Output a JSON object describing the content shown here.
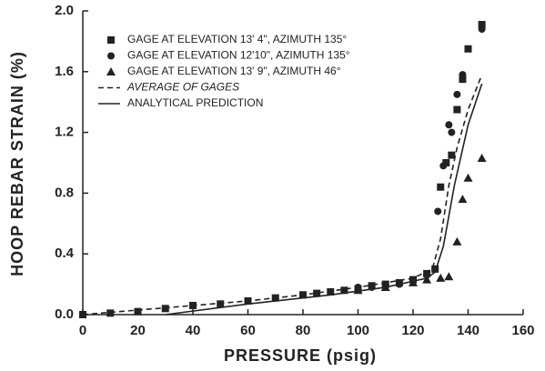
{
  "chart_data": {
    "type": "scatter",
    "x_label": "PRESSURE (psig)",
    "y_label": "HOOP REBAR STRAIN (%)",
    "xlim": [
      0,
      160
    ],
    "ylim": [
      0,
      2.0
    ],
    "xticks": [
      0,
      20,
      40,
      60,
      80,
      100,
      120,
      140,
      160
    ],
    "yticks": [
      {
        "value": 0,
        "label": "0.0"
      },
      0.4,
      0.8,
      1.2,
      1.6,
      {
        "value": 2.0,
        "label": "2.0"
      }
    ],
    "legend": "upper left",
    "series": [
      {
        "name": "GAGE AT ELEVATION 13' 4\", AZIMUTH 135°",
        "kind": "scatter",
        "marker": "square",
        "color": "#222",
        "x": [
          0,
          10,
          20,
          30,
          40,
          50,
          60,
          70,
          80,
          85,
          90,
          95,
          100,
          105,
          110,
          115,
          120,
          125,
          128,
          130,
          132,
          134,
          136,
          138,
          140,
          145
        ],
        "values": [
          0.0,
          0.01,
          0.02,
          0.04,
          0.06,
          0.07,
          0.09,
          0.11,
          0.13,
          0.14,
          0.15,
          0.16,
          0.17,
          0.19,
          0.2,
          0.21,
          0.23,
          0.27,
          0.3,
          0.84,
          1.0,
          1.05,
          1.35,
          1.55,
          1.75,
          1.91
        ]
      },
      {
        "name": "GAGE AT ELEVATION 12'10\", AZIMUTH 135°",
        "kind": "scatter",
        "marker": "circle",
        "color": "#222",
        "x": [
          100,
          105,
          110,
          115,
          120,
          125,
          128,
          129,
          131,
          133,
          134,
          136,
          138,
          145
        ],
        "values": [
          0.18,
          0.18,
          0.19,
          0.2,
          0.22,
          0.26,
          0.3,
          0.68,
          0.98,
          1.25,
          1.2,
          1.45,
          1.58,
          1.88
        ]
      },
      {
        "name": "GAGE AT ELEVATION 13' 9\", AZIMUTH 46°",
        "kind": "scatter",
        "marker": "triangle",
        "color": "#222",
        "x": [
          100,
          110,
          120,
          125,
          130,
          133,
          136,
          138,
          140,
          145
        ],
        "values": [
          0.16,
          0.18,
          0.21,
          0.23,
          0.24,
          0.25,
          0.48,
          0.76,
          0.9,
          1.03
        ]
      },
      {
        "name": "AVERAGE OF GAGES",
        "kind": "line",
        "dash": true,
        "color": "#222",
        "x": [
          0,
          20,
          40,
          60,
          80,
          100,
          120,
          127,
          130,
          133,
          136,
          140,
          145
        ],
        "values": [
          0.0,
          0.03,
          0.06,
          0.09,
          0.13,
          0.18,
          0.24,
          0.3,
          0.5,
          0.85,
          1.1,
          1.35,
          1.58
        ]
      },
      {
        "name": "ANALYTICAL PREDICTION",
        "kind": "line",
        "dash": false,
        "color": "#222",
        "x": [
          30,
          60,
          90,
          110,
          125,
          128,
          131,
          135,
          140,
          145
        ],
        "values": [
          0.0,
          0.07,
          0.13,
          0.18,
          0.24,
          0.28,
          0.45,
          0.85,
          1.25,
          1.52
        ]
      }
    ]
  }
}
